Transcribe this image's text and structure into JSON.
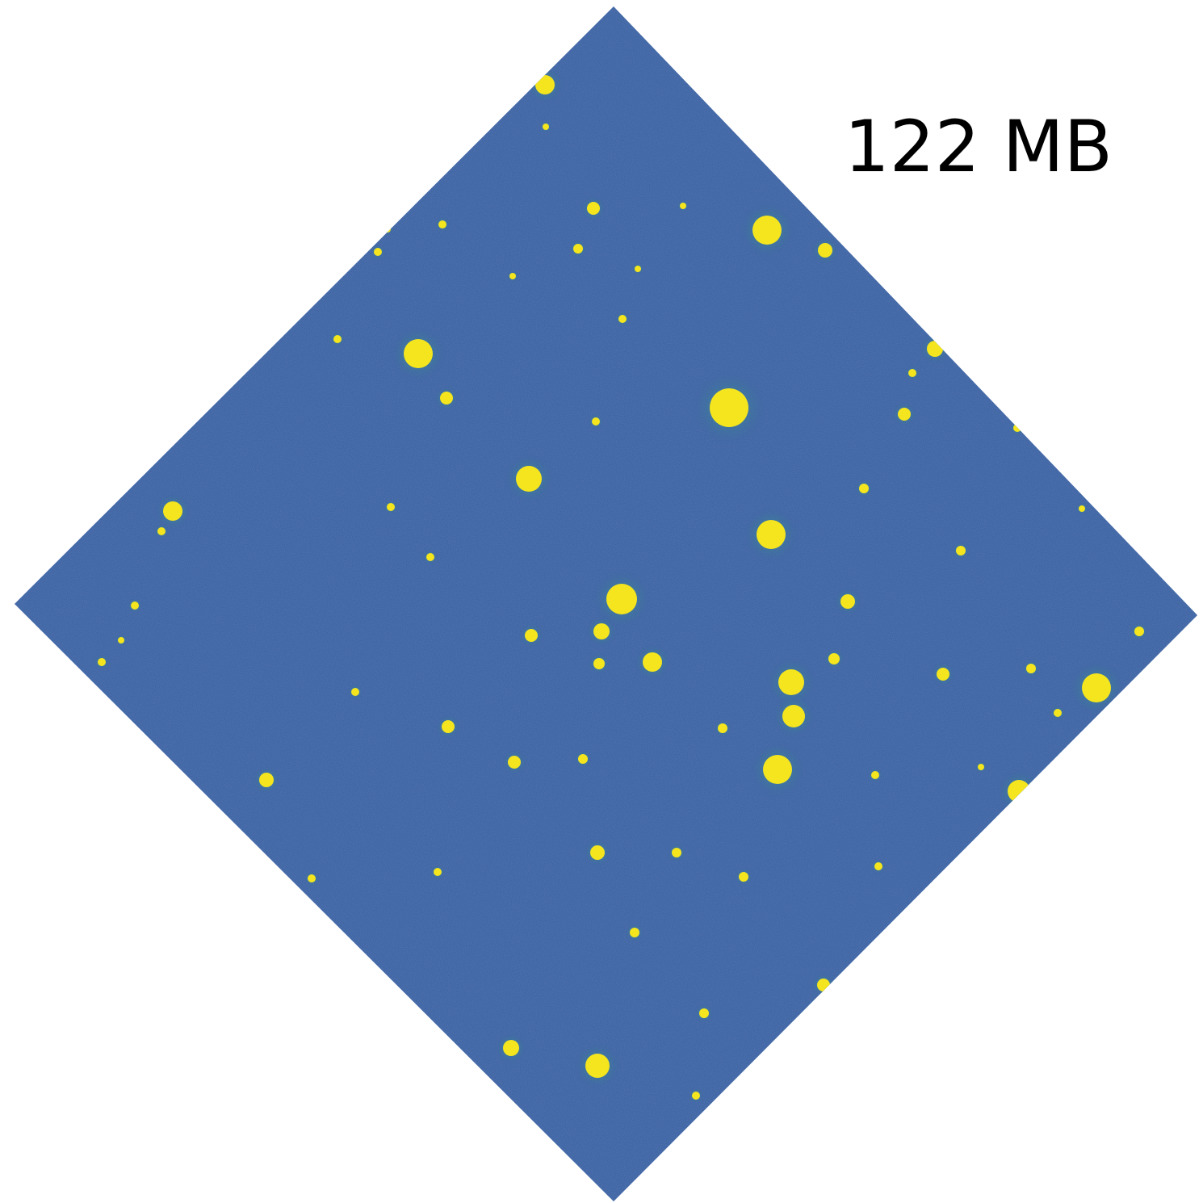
{
  "label": "122 MB"
}
